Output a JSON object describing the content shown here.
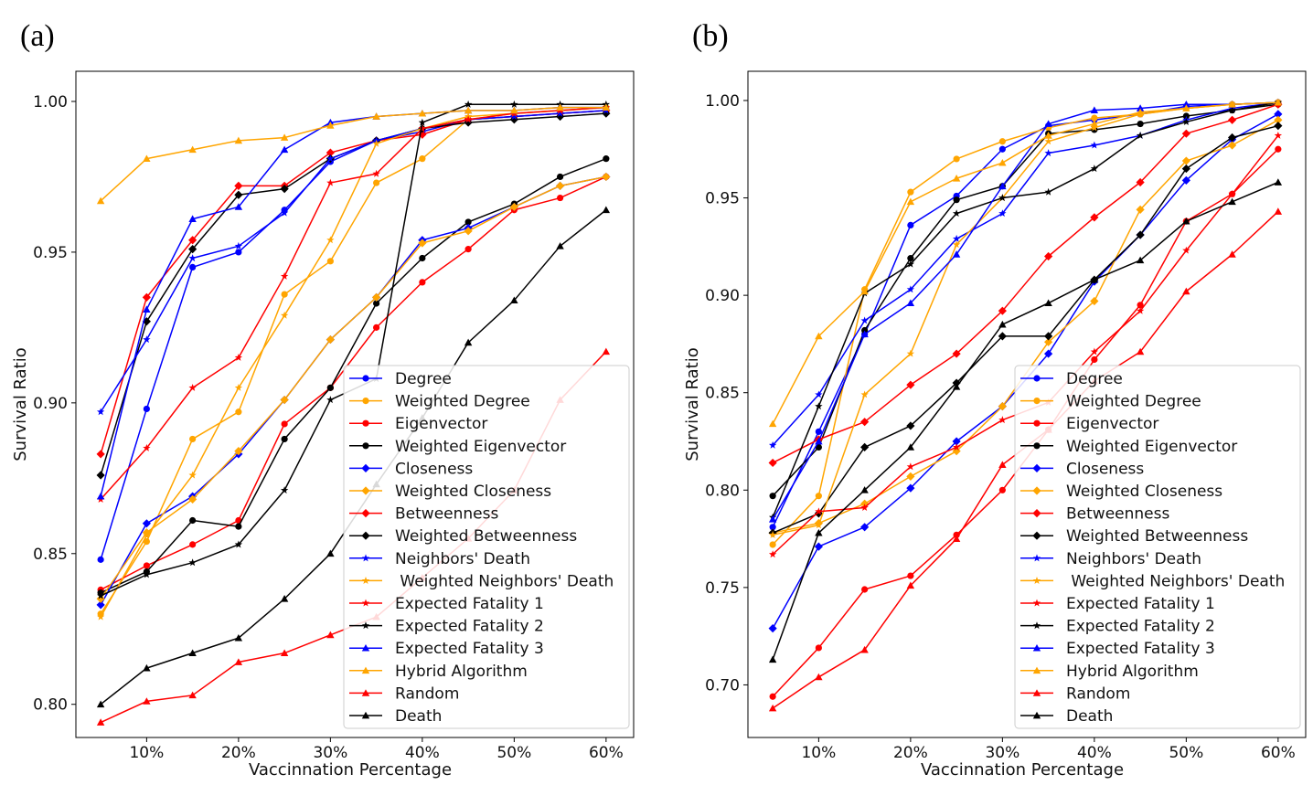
{
  "figure": {
    "panel_labels": [
      "(a)",
      "(b)"
    ]
  },
  "chart_data": [
    {
      "type": "line",
      "panel": "(a)",
      "xlabel": "Vaccinnation Percentage",
      "ylabel": "Survival Ratio",
      "x": [
        5,
        10,
        15,
        20,
        25,
        30,
        35,
        40,
        45,
        50,
        55,
        60
      ],
      "xlim": [
        2.3,
        63.0
      ],
      "ylim": [
        0.789,
        1.01
      ],
      "xticks": [
        10,
        20,
        30,
        40,
        50,
        60
      ],
      "xtick_labels": [
        "10%",
        "20%",
        "30%",
        "40%",
        "50%",
        "60%"
      ],
      "yticks": [
        0.8,
        0.85,
        0.9,
        0.95,
        1.0
      ],
      "ytick_labels": [
        "0.80",
        "0.85",
        "0.90",
        "0.95",
        "1.00"
      ],
      "legend_position": "center-right",
      "series": [
        {
          "name": "Degree",
          "color": "#0000ff",
          "marker": "circle",
          "values": [
            0.848,
            0.898,
            0.945,
            0.95,
            0.964,
            0.98,
            0.987,
            0.99,
            0.994,
            0.995,
            0.996,
            0.997
          ]
        },
        {
          "name": "Weighted Degree",
          "color": "#ffa500",
          "marker": "circle",
          "values": [
            0.83,
            0.854,
            0.888,
            0.897,
            0.936,
            0.947,
            0.973,
            0.981,
            0.994,
            0.996,
            0.997,
            0.998
          ]
        },
        {
          "name": "Eigenvector",
          "color": "#ff0000",
          "marker": "circle",
          "values": [
            0.838,
            0.846,
            0.853,
            0.861,
            0.893,
            0.905,
            0.925,
            0.94,
            0.951,
            0.964,
            0.968,
            0.975
          ]
        },
        {
          "name": "Weighted Eigenvector",
          "color": "#000000",
          "marker": "circle",
          "values": [
            0.837,
            0.844,
            0.861,
            0.859,
            0.888,
            0.905,
            0.933,
            0.948,
            0.96,
            0.966,
            0.975,
            0.981
          ]
        },
        {
          "name": "Closeness",
          "color": "#0000ff",
          "marker": "diamond",
          "values": [
            0.833,
            0.86,
            0.869,
            0.883,
            0.901,
            0.921,
            0.935,
            0.954,
            0.958,
            0.965,
            0.972,
            0.975
          ]
        },
        {
          "name": "Weighted Closeness",
          "color": "#ffa500",
          "marker": "diamond",
          "values": [
            0.835,
            0.857,
            0.868,
            0.884,
            0.901,
            0.921,
            0.935,
            0.953,
            0.957,
            0.965,
            0.972,
            0.975
          ]
        },
        {
          "name": "Betweenness",
          "color": "#ff0000",
          "marker": "diamond",
          "values": [
            0.883,
            0.935,
            0.954,
            0.972,
            0.972,
            0.983,
            0.987,
            0.989,
            0.994,
            0.995,
            0.996,
            0.997
          ]
        },
        {
          "name": "Weighted Betweenness",
          "color": "#000000",
          "marker": "diamond",
          "values": [
            0.876,
            0.927,
            0.951,
            0.969,
            0.971,
            0.981,
            0.987,
            0.991,
            0.993,
            0.994,
            0.995,
            0.996
          ]
        },
        {
          "name": "Neighbors' Death",
          "color": "#0000ff",
          "marker": "star",
          "values": [
            0.897,
            0.921,
            0.948,
            0.952,
            0.963,
            0.981,
            0.987,
            0.991,
            0.994,
            0.995,
            0.996,
            0.997
          ]
        },
        {
          "name": " Weighted Neighbors' Death",
          "color": "#ffa500",
          "marker": "star",
          "values": [
            0.829,
            0.856,
            0.876,
            0.905,
            0.929,
            0.954,
            0.986,
            0.991,
            0.995,
            0.996,
            0.997,
            0.998
          ]
        },
        {
          "name": "Expected Fatality 1",
          "color": "#ff0000",
          "marker": "star",
          "values": [
            0.868,
            0.885,
            0.905,
            0.915,
            0.942,
            0.973,
            0.976,
            0.991,
            0.994,
            0.996,
            0.997,
            0.998
          ]
        },
        {
          "name": "Expected Fatality 2",
          "color": "#000000",
          "marker": "star",
          "values": [
            0.836,
            0.843,
            0.847,
            0.853,
            0.871,
            0.901,
            0.908,
            0.993,
            0.999,
            0.999,
            0.999,
            0.999
          ]
        },
        {
          "name": "Expected Fatality 3",
          "color": "#0000ff",
          "marker": "triangle",
          "values": [
            0.869,
            0.931,
            0.961,
            0.965,
            0.984,
            0.993,
            0.995,
            0.996,
            0.997,
            0.997,
            0.998,
            0.998
          ]
        },
        {
          "name": "Hybrid Algorithm",
          "color": "#ffa500",
          "marker": "triangle",
          "values": [
            0.967,
            0.981,
            0.984,
            0.987,
            0.988,
            0.992,
            0.995,
            0.996,
            0.997,
            0.997,
            0.998,
            0.998
          ]
        },
        {
          "name": "Random",
          "color": "#ff0000",
          "marker": "triangle",
          "values": [
            0.794,
            0.801,
            0.803,
            0.814,
            0.817,
            0.823,
            0.829,
            0.842,
            0.855,
            0.871,
            0.901,
            0.917
          ]
        },
        {
          "name": "Death",
          "color": "#000000",
          "marker": "triangle",
          "values": [
            0.8,
            0.812,
            0.817,
            0.822,
            0.835,
            0.85,
            0.873,
            0.895,
            0.92,
            0.934,
            0.952,
            0.964
          ]
        }
      ]
    },
    {
      "type": "line",
      "panel": "(b)",
      "xlabel": "Vaccinnation Percentage",
      "ylabel": "Survival Ratio",
      "x": [
        5,
        10,
        15,
        20,
        25,
        30,
        35,
        40,
        45,
        50,
        55,
        60
      ],
      "xlim": [
        2.3,
        63.0
      ],
      "ylim": [
        0.673,
        1.015
      ],
      "xticks": [
        10,
        20,
        30,
        40,
        50,
        60
      ],
      "xtick_labels": [
        "10%",
        "20%",
        "30%",
        "40%",
        "50%",
        "60%"
      ],
      "yticks": [
        0.7,
        0.75,
        0.8,
        0.85,
        0.9,
        0.95,
        1.0
      ],
      "ytick_labels": [
        "0.70",
        "0.75",
        "0.80",
        "0.85",
        "0.90",
        "0.95",
        "1.00"
      ],
      "legend_position": "center-right",
      "series": [
        {
          "name": "Degree",
          "color": "#0000ff",
          "marker": "circle",
          "values": [
            0.781,
            0.83,
            0.88,
            0.936,
            0.951,
            0.975,
            0.987,
            0.99,
            0.993,
            0.997,
            0.998,
            0.999
          ]
        },
        {
          "name": "Weighted Degree",
          "color": "#ffa500",
          "marker": "circle",
          "values": [
            0.772,
            0.797,
            0.903,
            0.953,
            0.97,
            0.979,
            0.986,
            0.991,
            0.993,
            0.996,
            0.998,
            0.999
          ]
        },
        {
          "name": "Eigenvector",
          "color": "#ff0000",
          "marker": "circle",
          "values": [
            0.694,
            0.719,
            0.749,
            0.756,
            0.777,
            0.8,
            0.831,
            0.867,
            0.895,
            0.938,
            0.952,
            0.975
          ]
        },
        {
          "name": "Weighted Eigenvector",
          "color": "#000000",
          "marker": "circle",
          "values": [
            0.797,
            0.822,
            0.882,
            0.919,
            0.949,
            0.956,
            0.983,
            0.985,
            0.988,
            0.992,
            0.995,
            0.998
          ]
        },
        {
          "name": "Closeness",
          "color": "#0000ff",
          "marker": "diamond",
          "values": [
            0.729,
            0.771,
            0.781,
            0.801,
            0.825,
            0.843,
            0.87,
            0.907,
            0.931,
            0.959,
            0.98,
            0.993
          ]
        },
        {
          "name": "Weighted Closeness",
          "color": "#ffa500",
          "marker": "diamond",
          "values": [
            0.778,
            0.783,
            0.793,
            0.807,
            0.82,
            0.843,
            0.876,
            0.897,
            0.944,
            0.969,
            0.977,
            0.99
          ]
        },
        {
          "name": "Betweenness",
          "color": "#ff0000",
          "marker": "diamond",
          "values": [
            0.814,
            0.826,
            0.835,
            0.854,
            0.87,
            0.892,
            0.92,
            0.94,
            0.958,
            0.983,
            0.99,
            0.998
          ]
        },
        {
          "name": "Weighted Betweenness",
          "color": "#000000",
          "marker": "diamond",
          "values": [
            0.778,
            0.788,
            0.822,
            0.833,
            0.855,
            0.879,
            0.879,
            0.908,
            0.931,
            0.965,
            0.981,
            0.987
          ]
        },
        {
          "name": "Neighbors' Death",
          "color": "#0000ff",
          "marker": "star",
          "values": [
            0.823,
            0.849,
            0.887,
            0.903,
            0.929,
            0.942,
            0.973,
            0.977,
            0.982,
            0.99,
            0.996,
            0.999
          ]
        },
        {
          "name": " Weighted Neighbors' Death",
          "color": "#ffa500",
          "marker": "star",
          "values": [
            0.777,
            0.782,
            0.849,
            0.87,
            0.926,
            0.95,
            0.979,
            0.986,
            0.993,
            0.996,
            0.998,
            0.999
          ]
        },
        {
          "name": "Expected Fatality 1",
          "color": "#ff0000",
          "marker": "star",
          "values": [
            0.767,
            0.789,
            0.791,
            0.812,
            0.822,
            0.836,
            0.845,
            0.871,
            0.892,
            0.923,
            0.952,
            0.982
          ]
        },
        {
          "name": "Expected Fatality 2",
          "color": "#000000",
          "marker": "star",
          "values": [
            0.786,
            0.843,
            0.901,
            0.916,
            0.942,
            0.95,
            0.953,
            0.965,
            0.982,
            0.989,
            0.995,
            0.999
          ]
        },
        {
          "name": "Expected Fatality 3",
          "color": "#0000ff",
          "marker": "triangle",
          "values": [
            0.785,
            0.825,
            0.88,
            0.896,
            0.921,
            0.956,
            0.988,
            0.995,
            0.996,
            0.998,
            0.998,
            0.999
          ]
        },
        {
          "name": "Hybrid Algorithm",
          "color": "#ffa500",
          "marker": "triangle",
          "values": [
            0.834,
            0.879,
            0.902,
            0.948,
            0.96,
            0.968,
            0.982,
            0.988,
            0.994,
            0.996,
            0.998,
            0.999
          ]
        },
        {
          "name": "Random",
          "color": "#ff0000",
          "marker": "triangle",
          "values": [
            0.688,
            0.704,
            0.718,
            0.751,
            0.775,
            0.813,
            0.831,
            0.856,
            0.871,
            0.902,
            0.921,
            0.943
          ]
        },
        {
          "name": "Death",
          "color": "#000000",
          "marker": "triangle",
          "values": [
            0.713,
            0.778,
            0.8,
            0.822,
            0.853,
            0.885,
            0.896,
            0.908,
            0.918,
            0.938,
            0.948,
            0.958
          ]
        }
      ]
    }
  ]
}
